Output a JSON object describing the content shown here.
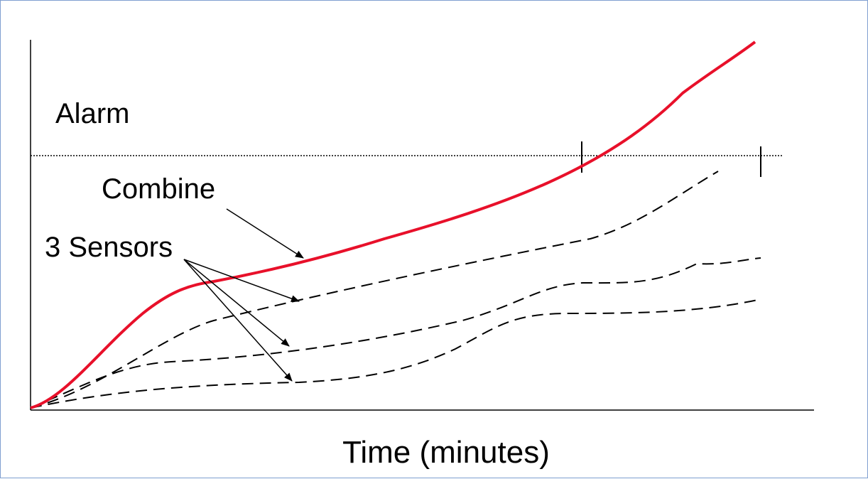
{
  "labels": {
    "alarm": "Alarm",
    "combine": "Combine",
    "sensors": "3 Sensors",
    "x_axis": "Time (minutes)"
  },
  "colors": {
    "combined_curve": "#e8102a",
    "sensor_curves": "#000000",
    "threshold_line": "#000000",
    "frame_border": "#7f9fd0"
  }
}
